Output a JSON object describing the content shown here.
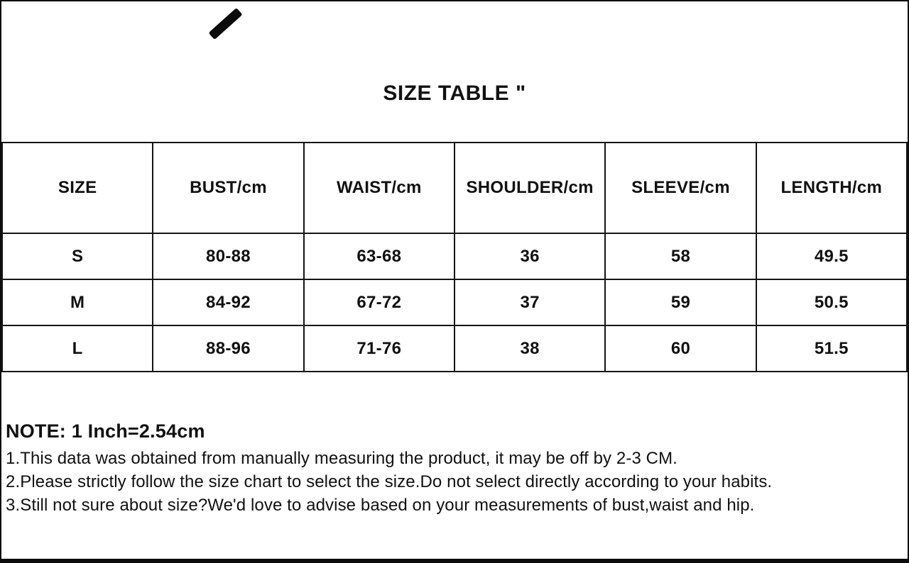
{
  "title": "SIZE TABLE \"",
  "table": {
    "headers": [
      "SIZE",
      "BUST/cm",
      "WAIST/cm",
      "SHOULDER/cm",
      "SLEEVE/cm",
      "LENGTH/cm"
    ],
    "rows": [
      [
        "S",
        "80-88",
        "63-68",
        "36",
        "58",
        "49.5"
      ],
      [
        "M",
        "84-92",
        "67-72",
        "37",
        "59",
        "50.5"
      ],
      [
        "L",
        "88-96",
        "71-76",
        "38",
        "60",
        "51.5"
      ]
    ]
  },
  "notes": {
    "heading": "NOTE: 1 Inch=2.54cm",
    "items": [
      "1.This data was obtained from manually measuring the product, it may be off by 2-3 CM.",
      "2.Please strictly follow the size chart to select the size.Do not select directly according to your habits.",
      "3.Still not sure about size?We'd love to advise based on your measurements of bust,waist and hip."
    ]
  },
  "colors": {
    "background": "#ffffff",
    "text": "#111111",
    "border": "#141414",
    "frame": "#0d0d0d"
  },
  "decorations": {
    "brush_stroke": "black-diagonal-pen-mark"
  }
}
